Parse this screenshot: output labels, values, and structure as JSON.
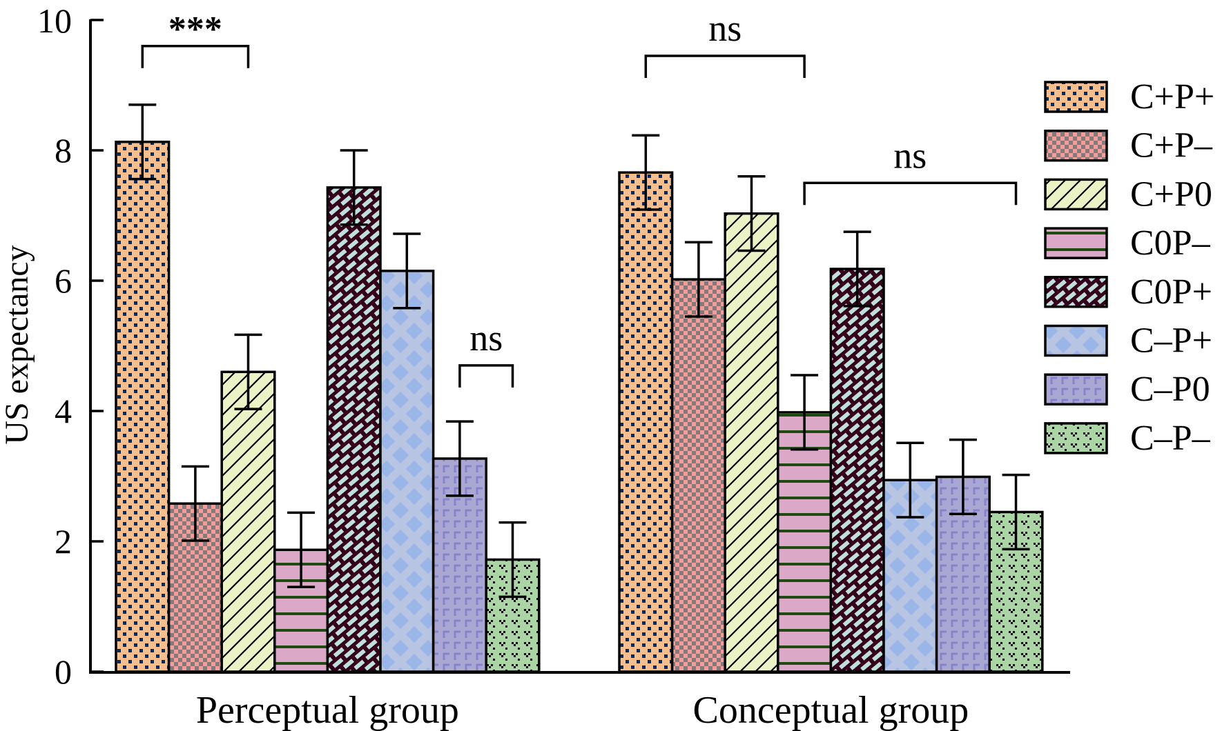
{
  "chart_data": {
    "type": "bar",
    "title": "",
    "xlabel": "",
    "ylabel": "US expectancy",
    "ylim": [
      0,
      10
    ],
    "yticks": [
      "0",
      "2",
      "4",
      "6",
      "8",
      "10"
    ],
    "grid": false,
    "legend_position": "right",
    "categories": [
      "Perceptual group",
      "Conceptual group"
    ],
    "series": [
      {
        "name": "C+P+",
        "values": [
          8.13,
          7.66
        ],
        "errors": [
          0.57,
          0.57
        ],
        "fill": "#f6be8c",
        "pattern": "dots",
        "pattern_color": "#0b2a5c"
      },
      {
        "name": "C+P–",
        "values": [
          2.58,
          6.02
        ],
        "errors": [
          0.57,
          0.57
        ],
        "fill": "#f29d96",
        "pattern": "checker",
        "pattern_color": "#85797d"
      },
      {
        "name": "C+P0",
        "values": [
          4.6,
          7.03
        ],
        "errors": [
          0.57,
          0.57
        ],
        "fill": "#eaf2c6",
        "pattern": "diagonal",
        "pattern_color": "#000000"
      },
      {
        "name": "C0P–",
        "values": [
          1.87,
          3.98
        ],
        "errors": [
          0.57,
          0.57
        ],
        "fill": "#dca8c8",
        "pattern": "horizontal",
        "pattern_color": "#1f4a12"
      },
      {
        "name": "C0P+",
        "values": [
          7.43,
          6.18
        ],
        "errors": [
          0.57,
          0.57
        ],
        "fill": "#bfe0da",
        "pattern": "brick",
        "pattern_color": "#35001a"
      },
      {
        "name": "C–P+",
        "values": [
          6.15,
          2.94
        ],
        "errors": [
          0.57,
          0.57
        ],
        "fill": "#b7c5e2",
        "pattern": "diamond",
        "pattern_color": "#9ab6e8"
      },
      {
        "name": "C–P0",
        "values": [
          3.27,
          2.99
        ],
        "errors": [
          0.57,
          0.57
        ],
        "fill": "#aaa8d2",
        "pattern": "corner",
        "pattern_color": "#8683cf"
      },
      {
        "name": "C–P–",
        "values": [
          1.72,
          2.45
        ],
        "errors": [
          0.57,
          0.57
        ],
        "fill": "#acd5a6",
        "pattern": "heart",
        "pattern_color": "#000000"
      }
    ],
    "annotations": [
      {
        "text": "***",
        "group": "Perceptual group",
        "from_series": "C+P+",
        "to_series": "C+P0",
        "y": 9.6
      },
      {
        "text": "ns",
        "group": "Perceptual group",
        "from_series": "C–P0",
        "to_series": "C–P–",
        "y": 4.7
      },
      {
        "text": "ns",
        "group": "Conceptual group",
        "from_series": "C+P+",
        "to_series": "C0P–",
        "y": 9.45
      },
      {
        "text": "ns",
        "group": "Conceptual group",
        "from_series": "C0P–",
        "to_series": "C–P–",
        "y": 7.5
      }
    ]
  }
}
